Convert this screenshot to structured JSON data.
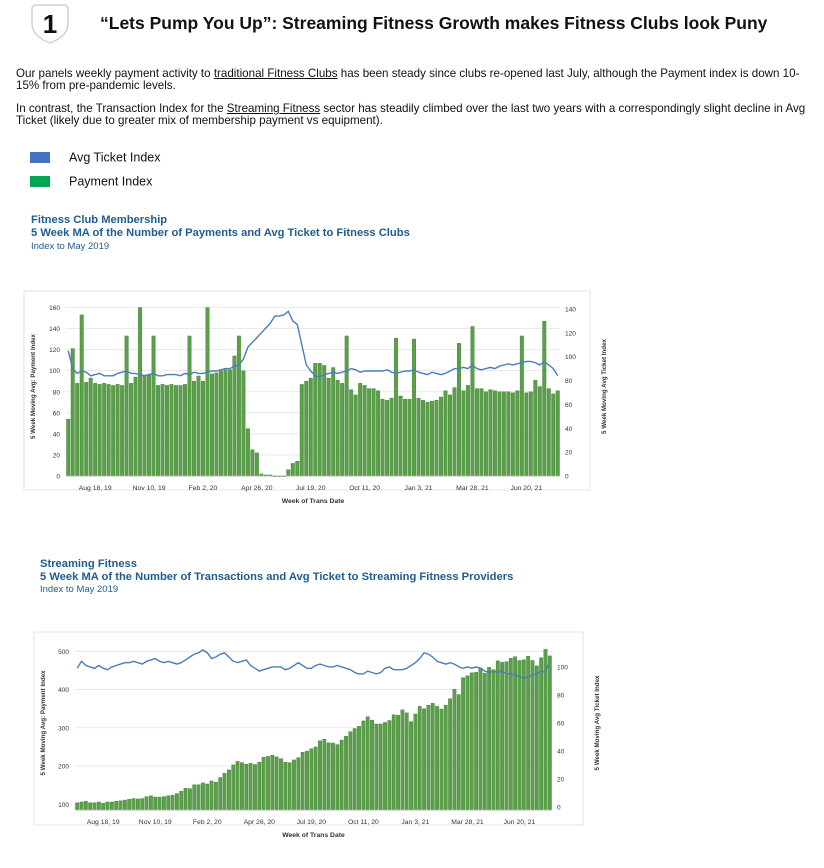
{
  "header": {
    "badge_number": "1",
    "title": "“Lets Pump You Up”: Streaming Fitness Growth makes Fitness Clubs look Puny"
  },
  "paragraphs": {
    "p1_a": "Our panels weekly payment activity to ",
    "p1_link": "traditional Fitness Clubs",
    "p1_b": " has been steady since clubs re-opened last July, although the Payment index is down 10-15% from pre-pandemic levels.",
    "p2_a": "In contrast, the Transaction Index for the ",
    "p2_link": "Streaming Fitness",
    "p2_b": " sector has steadily climbed over the last two years with a correspondingly slight decline in Avg Ticket (likely due to greater mix of membership payment vs equipment)."
  },
  "legend": {
    "items": [
      {
        "label": "Avg Ticket Index",
        "color": "#4472c4"
      },
      {
        "label": "Payment Index",
        "color": "#00a651"
      }
    ]
  },
  "colors": {
    "bar": "#5b9f4a",
    "bar_stroke": "#3f7f33",
    "line": "#4a7dba",
    "grid": "#e3e3e3",
    "title_blue": "#1f5c8f"
  },
  "chart_data": [
    {
      "type": "bar",
      "title": "Fitness Club Membership",
      "subtitle": "5 Week MA of the Number of Payments and Avg Ticket to Fitness Clubs",
      "note": "Index to May 2019",
      "xlabel": "Week of Trans Date",
      "ylabel": "5 Week Moving Avg: Payment Index",
      "y2label": "5 Week Moving Avg Ticket Index",
      "ylim": [
        0,
        170
      ],
      "y2lim": [
        0,
        150
      ],
      "yticks": [
        0,
        20,
        40,
        60,
        80,
        100,
        120,
        140,
        160
      ],
      "y2ticks": [
        0,
        20,
        40,
        60,
        80,
        100,
        120,
        140
      ],
      "xtick_labels": [
        "Aug 18, 19",
        "Nov 10, 19",
        "Feb 2, 20",
        "Apr 26, 20",
        "Jul 19, 20",
        "Oct 11, 20",
        "Jan 3, 21",
        "Mar 28, 21",
        "Jun 20, 21"
      ],
      "xtick_index": [
        6,
        18,
        30,
        42,
        54,
        66,
        78,
        90,
        102
      ],
      "series": [
        {
          "name": "Payment Index",
          "kind": "bar",
          "values": [
            54,
            121,
            88,
            153,
            89,
            93,
            88,
            87,
            88,
            87,
            86,
            87,
            86,
            133,
            88,
            94,
            160,
            96,
            96,
            133,
            86,
            87,
            86,
            87,
            86,
            86,
            87,
            133,
            90,
            95,
            90,
            160,
            97,
            98,
            100,
            101,
            101,
            114,
            133,
            100,
            45,
            25,
            22,
            2,
            1,
            1,
            0,
            0,
            0,
            6,
            12,
            14,
            87,
            90,
            93,
            107,
            107,
            105,
            93,
            103,
            91,
            88,
            133,
            82,
            77,
            88,
            86,
            83,
            83,
            81,
            73,
            72,
            74,
            131,
            76,
            73,
            73,
            130,
            74,
            72,
            70,
            71,
            72,
            75,
            81,
            77,
            84,
            126,
            81,
            86,
            142,
            83,
            83,
            80,
            82,
            81,
            80,
            80,
            80,
            79,
            81,
            133,
            79,
            80,
            91,
            85,
            147,
            83,
            78,
            81
          ]
        },
        {
          "name": "Avg Ticket Index",
          "kind": "line",
          "values": [
            105,
            90,
            86,
            88,
            87,
            84,
            85,
            86,
            84,
            84,
            84,
            86,
            87,
            88,
            86,
            86,
            85,
            84,
            85,
            86,
            84,
            84,
            85,
            85,
            85,
            84,
            86,
            85,
            87,
            86,
            86,
            87,
            88,
            88,
            89,
            90,
            90,
            92,
            93,
            98,
            108,
            112,
            116,
            120,
            124,
            128,
            134,
            134,
            135,
            138,
            130,
            127,
            110,
            93,
            88,
            84,
            83,
            85,
            86,
            87,
            86,
            87,
            88,
            90,
            89,
            87,
            88,
            88,
            88,
            88,
            88,
            89,
            87,
            86,
            87,
            88,
            88,
            89,
            87,
            86,
            85,
            87,
            86,
            85,
            86,
            88,
            90,
            90,
            91,
            90,
            93,
            90,
            89,
            90,
            91,
            90,
            92,
            93,
            94,
            93,
            94,
            95,
            96,
            96,
            95,
            93,
            96,
            93,
            90,
            84
          ]
        }
      ]
    },
    {
      "type": "bar",
      "title": "Streaming Fitness",
      "subtitle": "5 Week MA of the Number of Transactions and Avg Ticket to Streaming Fitness Providers",
      "note": "Index to May 2019",
      "xlabel": "Week of Trans Date",
      "ylabel": "5 Week Moving Avg: Payment Index",
      "y2label": "5 Week Moving Avg Ticket Index",
      "ylim": [
        85,
        540
      ],
      "y2lim": [
        -2,
        122
      ],
      "yticks": [
        100,
        200,
        300,
        400,
        500
      ],
      "y2ticks": [
        0,
        20,
        40,
        60,
        80,
        100
      ],
      "xtick_labels": [
        "Aug 18, 19",
        "Nov 10, 19",
        "Feb 2, 20",
        "Apr 26, 20",
        "Jul 19, 20",
        "Oct 11, 20",
        "Jan 3, 21",
        "Mar 28, 21",
        "Jun 20, 21"
      ],
      "xtick_index": [
        6,
        18,
        30,
        42,
        54,
        66,
        78,
        90,
        102
      ],
      "series": [
        {
          "name": "Payment Index",
          "kind": "bar",
          "values": [
            104,
            106,
            108,
            104,
            104,
            106,
            103,
            106,
            106,
            108,
            109,
            111,
            113,
            115,
            114,
            115,
            120,
            122,
            119,
            119,
            120,
            122,
            124,
            128,
            134,
            142,
            141,
            151,
            151,
            156,
            153,
            161,
            158,
            170,
            181,
            190,
            203,
            212,
            209,
            205,
            207,
            204,
            210,
            223,
            225,
            228,
            224,
            219,
            210,
            209,
            216,
            222,
            236,
            239,
            245,
            250,
            266,
            270,
            261,
            260,
            256,
            268,
            278,
            290,
            298,
            304,
            318,
            329,
            320,
            310,
            310,
            314,
            319,
            334,
            333,
            347,
            339,
            316,
            336,
            356,
            350,
            359,
            364,
            356,
            349,
            359,
            376,
            401,
            387,
            431,
            436,
            444,
            445,
            457,
            443,
            458,
            452,
            475,
            471,
            473,
            482,
            486,
            476,
            478,
            487,
            476,
            462,
            483,
            505,
            488
          ]
        },
        {
          "name": "Avg Ticket Index",
          "kind": "line",
          "values": [
            99,
            104,
            101,
            100,
            99,
            101,
            99,
            98,
            100,
            101,
            102,
            103,
            103,
            104,
            103,
            102,
            104,
            105,
            106,
            104,
            103,
            104,
            103,
            102,
            103,
            105,
            107,
            109,
            110,
            112,
            110,
            106,
            107,
            109,
            110,
            107,
            104,
            103,
            104,
            105,
            101,
            99,
            97,
            98,
            99,
            100,
            100,
            100,
            98,
            99,
            101,
            103,
            101,
            99,
            99,
            101,
            102,
            101,
            100,
            100,
            101,
            100,
            99,
            98,
            96,
            95,
            95,
            97,
            96,
            95,
            96,
            99,
            100,
            98,
            98,
            98,
            99,
            101,
            103,
            106,
            110,
            109,
            107,
            104,
            103,
            102,
            103,
            102,
            100,
            99,
            100,
            99,
            100,
            99,
            97,
            96,
            97,
            96,
            97,
            95,
            95,
            94,
            93,
            92,
            93,
            94,
            95,
            97,
            96,
            104
          ]
        }
      ]
    }
  ]
}
